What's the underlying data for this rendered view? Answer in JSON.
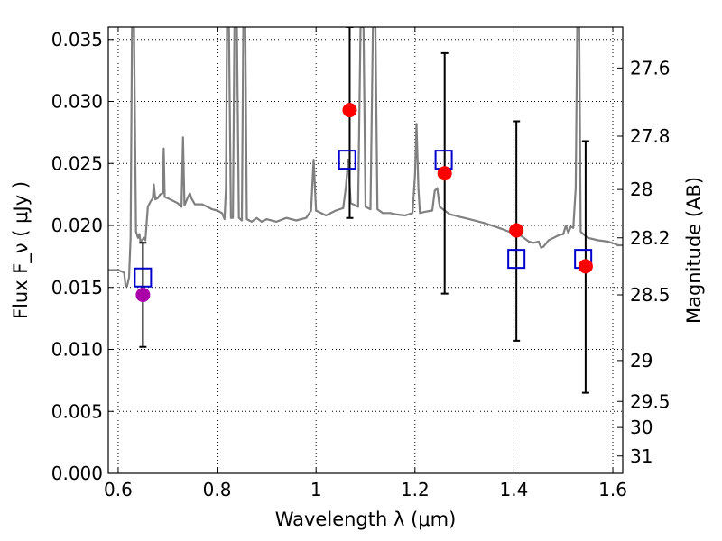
{
  "chart_data": {
    "type": "scatter",
    "xlabel": "Wavelength  λ (μm)",
    "ylabel": "Flux  F_ν  ( μJy )",
    "y2label": "Magnitude (AB)",
    "xlim": [
      0.58,
      1.62
    ],
    "ylim": [
      0.0,
      0.036
    ],
    "grid": true,
    "x_ticks": [
      0.6,
      0.8,
      1.0,
      1.2,
      1.4,
      1.6
    ],
    "x_tick_labels": [
      "0.6",
      "0.8",
      "1",
      "1.2",
      "1.4",
      "1.6"
    ],
    "y_ticks": [
      0.0,
      0.005,
      0.01,
      0.015,
      0.02,
      0.025,
      0.03,
      0.035
    ],
    "y_tick_labels": [
      "0.000",
      "0.005",
      "0.010",
      "0.015",
      "0.020",
      "0.025",
      "0.030",
      "0.035"
    ],
    "y2_ticks": [
      {
        "label": "27.6",
        "flux": 0.0327
      },
      {
        "label": "27.8",
        "flux": 0.0272
      },
      {
        "label": "28",
        "flux": 0.0229
      },
      {
        "label": "28.2",
        "flux": 0.019
      },
      {
        "label": "28.5",
        "flux": 0.0144
      },
      {
        "label": "29",
        "flux": 0.0091
      },
      {
        "label": "29.5",
        "flux": 0.0058
      },
      {
        "label": "30",
        "flux": 0.0037
      },
      {
        "label": "31",
        "flux": 0.0014
      }
    ],
    "colors": {
      "spectrum": "#808080",
      "observed": "#ff0000",
      "observed_first": "#aa00aa",
      "model_box": "#0000cc",
      "error_bar": "#000000"
    },
    "series": [
      {
        "kind": "model_spectrum",
        "points": [
          [
            0.58,
            0.0164
          ],
          [
            0.6,
            0.0164
          ],
          [
            0.612,
            0.0162
          ],
          [
            0.615,
            0.0151
          ],
          [
            0.618,
            0.0151
          ],
          [
            0.622,
            0.0158
          ],
          [
            0.625,
            0.019
          ],
          [
            0.628,
            0.036
          ],
          [
            0.632,
            0.036
          ],
          [
            0.636,
            0.0195
          ],
          [
            0.64,
            0.019
          ],
          [
            0.643,
            0.0193
          ],
          [
            0.645,
            0.0187
          ],
          [
            0.648,
            0.0188
          ],
          [
            0.652,
            0.019
          ],
          [
            0.655,
            0.0188
          ],
          [
            0.66,
            0.0215
          ],
          [
            0.665,
            0.0219
          ],
          [
            0.67,
            0.0222
          ],
          [
            0.672,
            0.0233
          ],
          [
            0.675,
            0.0221
          ],
          [
            0.68,
            0.0222
          ],
          [
            0.685,
            0.0225
          ],
          [
            0.69,
            0.0226
          ],
          [
            0.692,
            0.0262
          ],
          [
            0.694,
            0.0223
          ],
          [
            0.7,
            0.0222
          ],
          [
            0.71,
            0.022
          ],
          [
            0.72,
            0.0218
          ],
          [
            0.728,
            0.0215
          ],
          [
            0.731,
            0.0271
          ],
          [
            0.734,
            0.0216
          ],
          [
            0.74,
            0.0222
          ],
          [
            0.745,
            0.0226
          ],
          [
            0.748,
            0.0222
          ],
          [
            0.755,
            0.0217
          ],
          [
            0.77,
            0.0217
          ],
          [
            0.79,
            0.0213
          ],
          [
            0.8,
            0.0212
          ],
          [
            0.81,
            0.021
          ],
          [
            0.815,
            0.0205
          ],
          [
            0.818,
            0.023
          ],
          [
            0.82,
            0.036
          ],
          [
            0.824,
            0.036
          ],
          [
            0.828,
            0.0206
          ],
          [
            0.832,
            0.0206
          ],
          [
            0.835,
            0.036
          ],
          [
            0.84,
            0.036
          ],
          [
            0.844,
            0.0206
          ],
          [
            0.85,
            0.0204
          ],
          [
            0.853,
            0.036
          ],
          [
            0.857,
            0.036
          ],
          [
            0.86,
            0.0205
          ],
          [
            0.87,
            0.0203
          ],
          [
            0.88,
            0.0206
          ],
          [
            0.89,
            0.0203
          ],
          [
            0.9,
            0.0205
          ],
          [
            0.92,
            0.0203
          ],
          [
            0.94,
            0.0206
          ],
          [
            0.96,
            0.0204
          ],
          [
            0.98,
            0.0206
          ],
          [
            0.99,
            0.0212
          ],
          [
            0.995,
            0.0253
          ],
          [
            1.0,
            0.0212
          ],
          [
            1.02,
            0.0208
          ],
          [
            1.04,
            0.0212
          ],
          [
            1.055,
            0.0214
          ],
          [
            1.06,
            0.023
          ],
          [
            1.065,
            0.0253
          ],
          [
            1.07,
            0.0218
          ],
          [
            1.085,
            0.0215
          ],
          [
            1.09,
            0.036
          ],
          [
            1.096,
            0.036
          ],
          [
            1.1,
            0.0215
          ],
          [
            1.11,
            0.0213
          ],
          [
            1.115,
            0.036
          ],
          [
            1.12,
            0.036
          ],
          [
            1.124,
            0.0213
          ],
          [
            1.135,
            0.021
          ],
          [
            1.15,
            0.021
          ],
          [
            1.16,
            0.0209
          ],
          [
            1.18,
            0.0208
          ],
          [
            1.195,
            0.021
          ],
          [
            1.2,
            0.024
          ],
          [
            1.203,
            0.0282
          ],
          [
            1.207,
            0.023
          ],
          [
            1.21,
            0.021
          ],
          [
            1.22,
            0.0211
          ],
          [
            1.235,
            0.0212
          ],
          [
            1.24,
            0.0228
          ],
          [
            1.245,
            0.023
          ],
          [
            1.25,
            0.0215
          ],
          [
            1.27,
            0.0209
          ],
          [
            1.29,
            0.0207
          ],
          [
            1.31,
            0.0205
          ],
          [
            1.34,
            0.0202
          ],
          [
            1.37,
            0.0198
          ],
          [
            1.39,
            0.0195
          ],
          [
            1.41,
            0.0193
          ],
          [
            1.42,
            0.019
          ],
          [
            1.43,
            0.0187
          ],
          [
            1.44,
            0.0186
          ],
          [
            1.45,
            0.0187
          ],
          [
            1.455,
            0.0182
          ],
          [
            1.46,
            0.0183
          ],
          [
            1.47,
            0.0188
          ],
          [
            1.48,
            0.019
          ],
          [
            1.49,
            0.0192
          ],
          [
            1.5,
            0.0193
          ],
          [
            1.505,
            0.02
          ],
          [
            1.51,
            0.0194
          ],
          [
            1.515,
            0.0199
          ],
          [
            1.52,
            0.0198
          ],
          [
            1.525,
            0.023
          ],
          [
            1.528,
            0.036
          ],
          [
            1.532,
            0.036
          ],
          [
            1.535,
            0.0195
          ],
          [
            1.54,
            0.0193
          ],
          [
            1.55,
            0.019
          ],
          [
            1.57,
            0.0188
          ],
          [
            1.59,
            0.0187
          ],
          [
            1.605,
            0.0185
          ],
          [
            1.61,
            0.0184
          ],
          [
            1.62,
            0.0184
          ]
        ]
      },
      {
        "kind": "model_photometry",
        "points": [
          {
            "x": 0.65,
            "y": 0.0158
          },
          {
            "x": 1.063,
            "y": 0.0253
          },
          {
            "x": 1.258,
            "y": 0.0253
          },
          {
            "x": 1.405,
            "y": 0.0173
          },
          {
            "x": 1.54,
            "y": 0.0173
          }
        ]
      },
      {
        "kind": "observed_photometry",
        "points": [
          {
            "x": 0.65,
            "y": 0.0144,
            "lo": 0.0102,
            "hi": 0.0186
          },
          {
            "x": 1.068,
            "y": 0.0293,
            "lo": 0.0206,
            "hi": 0.036
          },
          {
            "x": 1.26,
            "y": 0.0242,
            "lo": 0.0145,
            "hi": 0.0339
          },
          {
            "x": 1.405,
            "y": 0.0196,
            "lo": 0.0107,
            "hi": 0.0284
          },
          {
            "x": 1.545,
            "y": 0.0167,
            "lo": 0.0065,
            "hi": 0.0268
          }
        ]
      }
    ]
  }
}
